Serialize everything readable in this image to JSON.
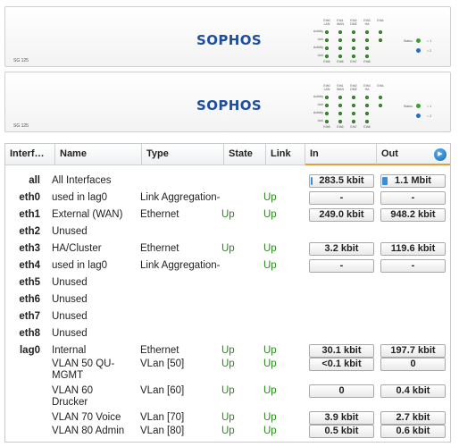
{
  "devices": [
    {
      "model": "SG 125",
      "logo": "SOPHOS",
      "ports": [
        "Eth0\nLAN",
        "Eth1\nWAN",
        "Eth2\nDMZ",
        "Eth3\nHA",
        "Eth4"
      ],
      "ports_bottom": [
        "Eth5",
        "Eth6",
        "Eth7",
        "Eth8"
      ],
      "rows": [
        "Activity",
        "Link",
        "Activity",
        "Link"
      ],
      "status_label": "Status",
      "status_items": [
        "1",
        "2"
      ]
    },
    {
      "model": "SG 125",
      "logo": "SOPHOS",
      "ports": [
        "Eth0\nLAN",
        "Eth1\nWAN",
        "Eth2\nDMZ",
        "Eth3\nHA",
        "Eth4"
      ],
      "ports_bottom": [
        "Eth5",
        "Eth6",
        "Eth7",
        "Eth8"
      ],
      "rows": [
        "Activity",
        "Link",
        "Activity",
        "Link"
      ],
      "status_label": "Status",
      "status_items": [
        "1",
        "2"
      ]
    }
  ],
  "colors": {
    "accent_led": "#3e9c2e",
    "up": "#2d8a1f",
    "logo": "#1f4f9c",
    "bar": "#3a8ed8",
    "header_underline": "#e2a13a"
  },
  "table": {
    "headers": {
      "interface": "Interf…",
      "name": "Name",
      "type": "Type",
      "state": "State",
      "link": "Link",
      "in": "In",
      "out": "Out"
    },
    "next_icon": "next-arrow-icon",
    "rows": [
      {
        "iface": "all",
        "name": "All Interfaces",
        "type": "",
        "state": "",
        "link": "",
        "in": "283.5 kbit",
        "out": "1.1 Mbit",
        "in_fill": 0.03,
        "out_fill": 0.08
      },
      {
        "iface": "eth0",
        "name": "used in lag0",
        "type": "Link Aggregation-",
        "state": "",
        "link": "Up",
        "in": "-",
        "out": "-"
      },
      {
        "iface": "eth1",
        "name": "External (WAN)",
        "type": "Ethernet",
        "state": "Up",
        "link": "Up",
        "in": "249.0 kbit",
        "out": "948.2 kbit"
      },
      {
        "iface": "eth2",
        "name": "Unused",
        "type": "",
        "state": "",
        "link": "",
        "in": null,
        "out": null
      },
      {
        "iface": "eth3",
        "name": "HA/Cluster",
        "type": "Ethernet",
        "state": "Up",
        "link": "Up",
        "in": "3.2 kbit",
        "out": "119.6 kbit"
      },
      {
        "iface": "eth4",
        "name": "used in lag0",
        "type": "Link Aggregation-",
        "state": "",
        "link": "Up",
        "in": "-",
        "out": "-"
      },
      {
        "iface": "eth5",
        "name": "Unused",
        "type": "",
        "state": "",
        "link": "",
        "in": null,
        "out": null
      },
      {
        "iface": "eth6",
        "name": "Unused",
        "type": "",
        "state": "",
        "link": "",
        "in": null,
        "out": null
      },
      {
        "iface": "eth7",
        "name": "Unused",
        "type": "",
        "state": "",
        "link": "",
        "in": null,
        "out": null
      },
      {
        "iface": "eth8",
        "name": "Unused",
        "type": "",
        "state": "",
        "link": "",
        "in": null,
        "out": null
      },
      {
        "iface": "lag0",
        "name": "Internal",
        "type": "Ethernet",
        "state": "Up",
        "link": "Up",
        "in": "30.1 kbit",
        "out": "197.7 kbit"
      },
      {
        "iface": "",
        "name": "VLAN 50 QU-\nMGMT",
        "type": "VLan [50]",
        "state": "Up",
        "link": "Up",
        "in": "<0.1 kbit",
        "out": "0"
      },
      {
        "iface": "",
        "name": "VLAN 60\nDrucker",
        "type": "VLan [60]",
        "state": "Up",
        "link": "Up",
        "in": "0",
        "out": "0.4 kbit"
      },
      {
        "iface": "",
        "name": "VLAN 70 Voice",
        "type": "VLan [70]",
        "state": "Up",
        "link": "Up",
        "in": "3.9 kbit",
        "out": "2.7 kbit"
      },
      {
        "iface": "",
        "name": "VLAN 80 Admin",
        "type": "VLan [80]",
        "state": "Up",
        "link": "Up",
        "in": "0.5 kbit",
        "out": "0.6 kbit"
      }
    ]
  }
}
